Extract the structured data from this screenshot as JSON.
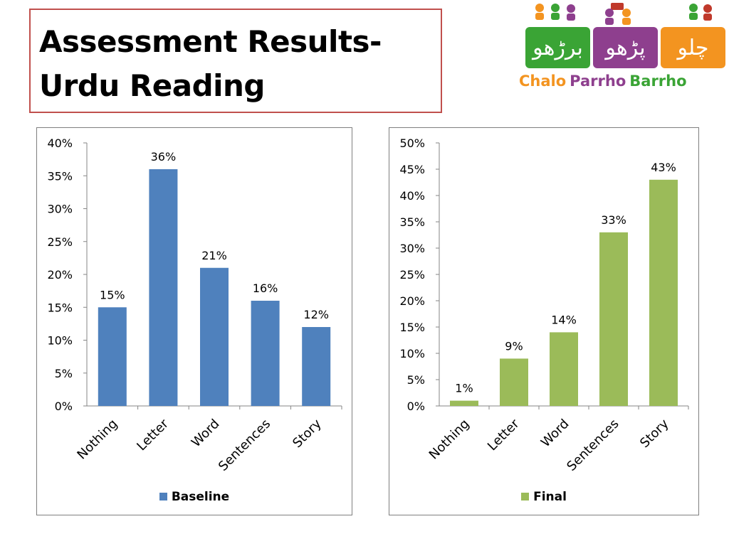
{
  "title": {
    "line1": "Assessment Results-",
    "line2": "Urdu Reading"
  },
  "logo": {
    "tiles": [
      {
        "text": "برڑھو",
        "color": "#3aa435"
      },
      {
        "text": "پڑھو",
        "color": "#8e3f8e"
      },
      {
        "text": "چلو",
        "color": "#f39420"
      }
    ],
    "words": [
      {
        "text": "Chalo",
        "color": "#f39420"
      },
      {
        "text": "Parrho",
        "color": "#8e3f8e"
      },
      {
        "text": "Barrho",
        "color": "#3aa435"
      }
    ]
  },
  "chart_data": [
    {
      "type": "bar",
      "categories": [
        "Nothing",
        "Letter",
        "Word",
        "Sentences",
        "Story"
      ],
      "series": [
        {
          "name": "Baseline",
          "values": [
            15,
            36,
            21,
            16,
            12
          ],
          "color": "#4f81bd"
        }
      ],
      "data_labels": [
        "15%",
        "36%",
        "21%",
        "16%",
        "12%"
      ],
      "yticks": [
        "0%",
        "5%",
        "10%",
        "15%",
        "20%",
        "25%",
        "30%",
        "35%",
        "40%"
      ],
      "ylim": [
        0,
        40
      ],
      "grid": false,
      "legend": "bottom"
    },
    {
      "type": "bar",
      "categories": [
        "Nothing",
        "Letter",
        "Word",
        "Sentences",
        "Story"
      ],
      "series": [
        {
          "name": "Final",
          "values": [
            1,
            9,
            14,
            33,
            43
          ],
          "color": "#9bbb59"
        }
      ],
      "data_labels": [
        "1%",
        "9%",
        "14%",
        "33%",
        "43%"
      ],
      "yticks": [
        "0%",
        "5%",
        "10%",
        "15%",
        "20%",
        "25%",
        "30%",
        "35%",
        "40%",
        "45%",
        "50%"
      ],
      "ylim": [
        0,
        50
      ],
      "grid": false,
      "legend": "bottom"
    }
  ]
}
